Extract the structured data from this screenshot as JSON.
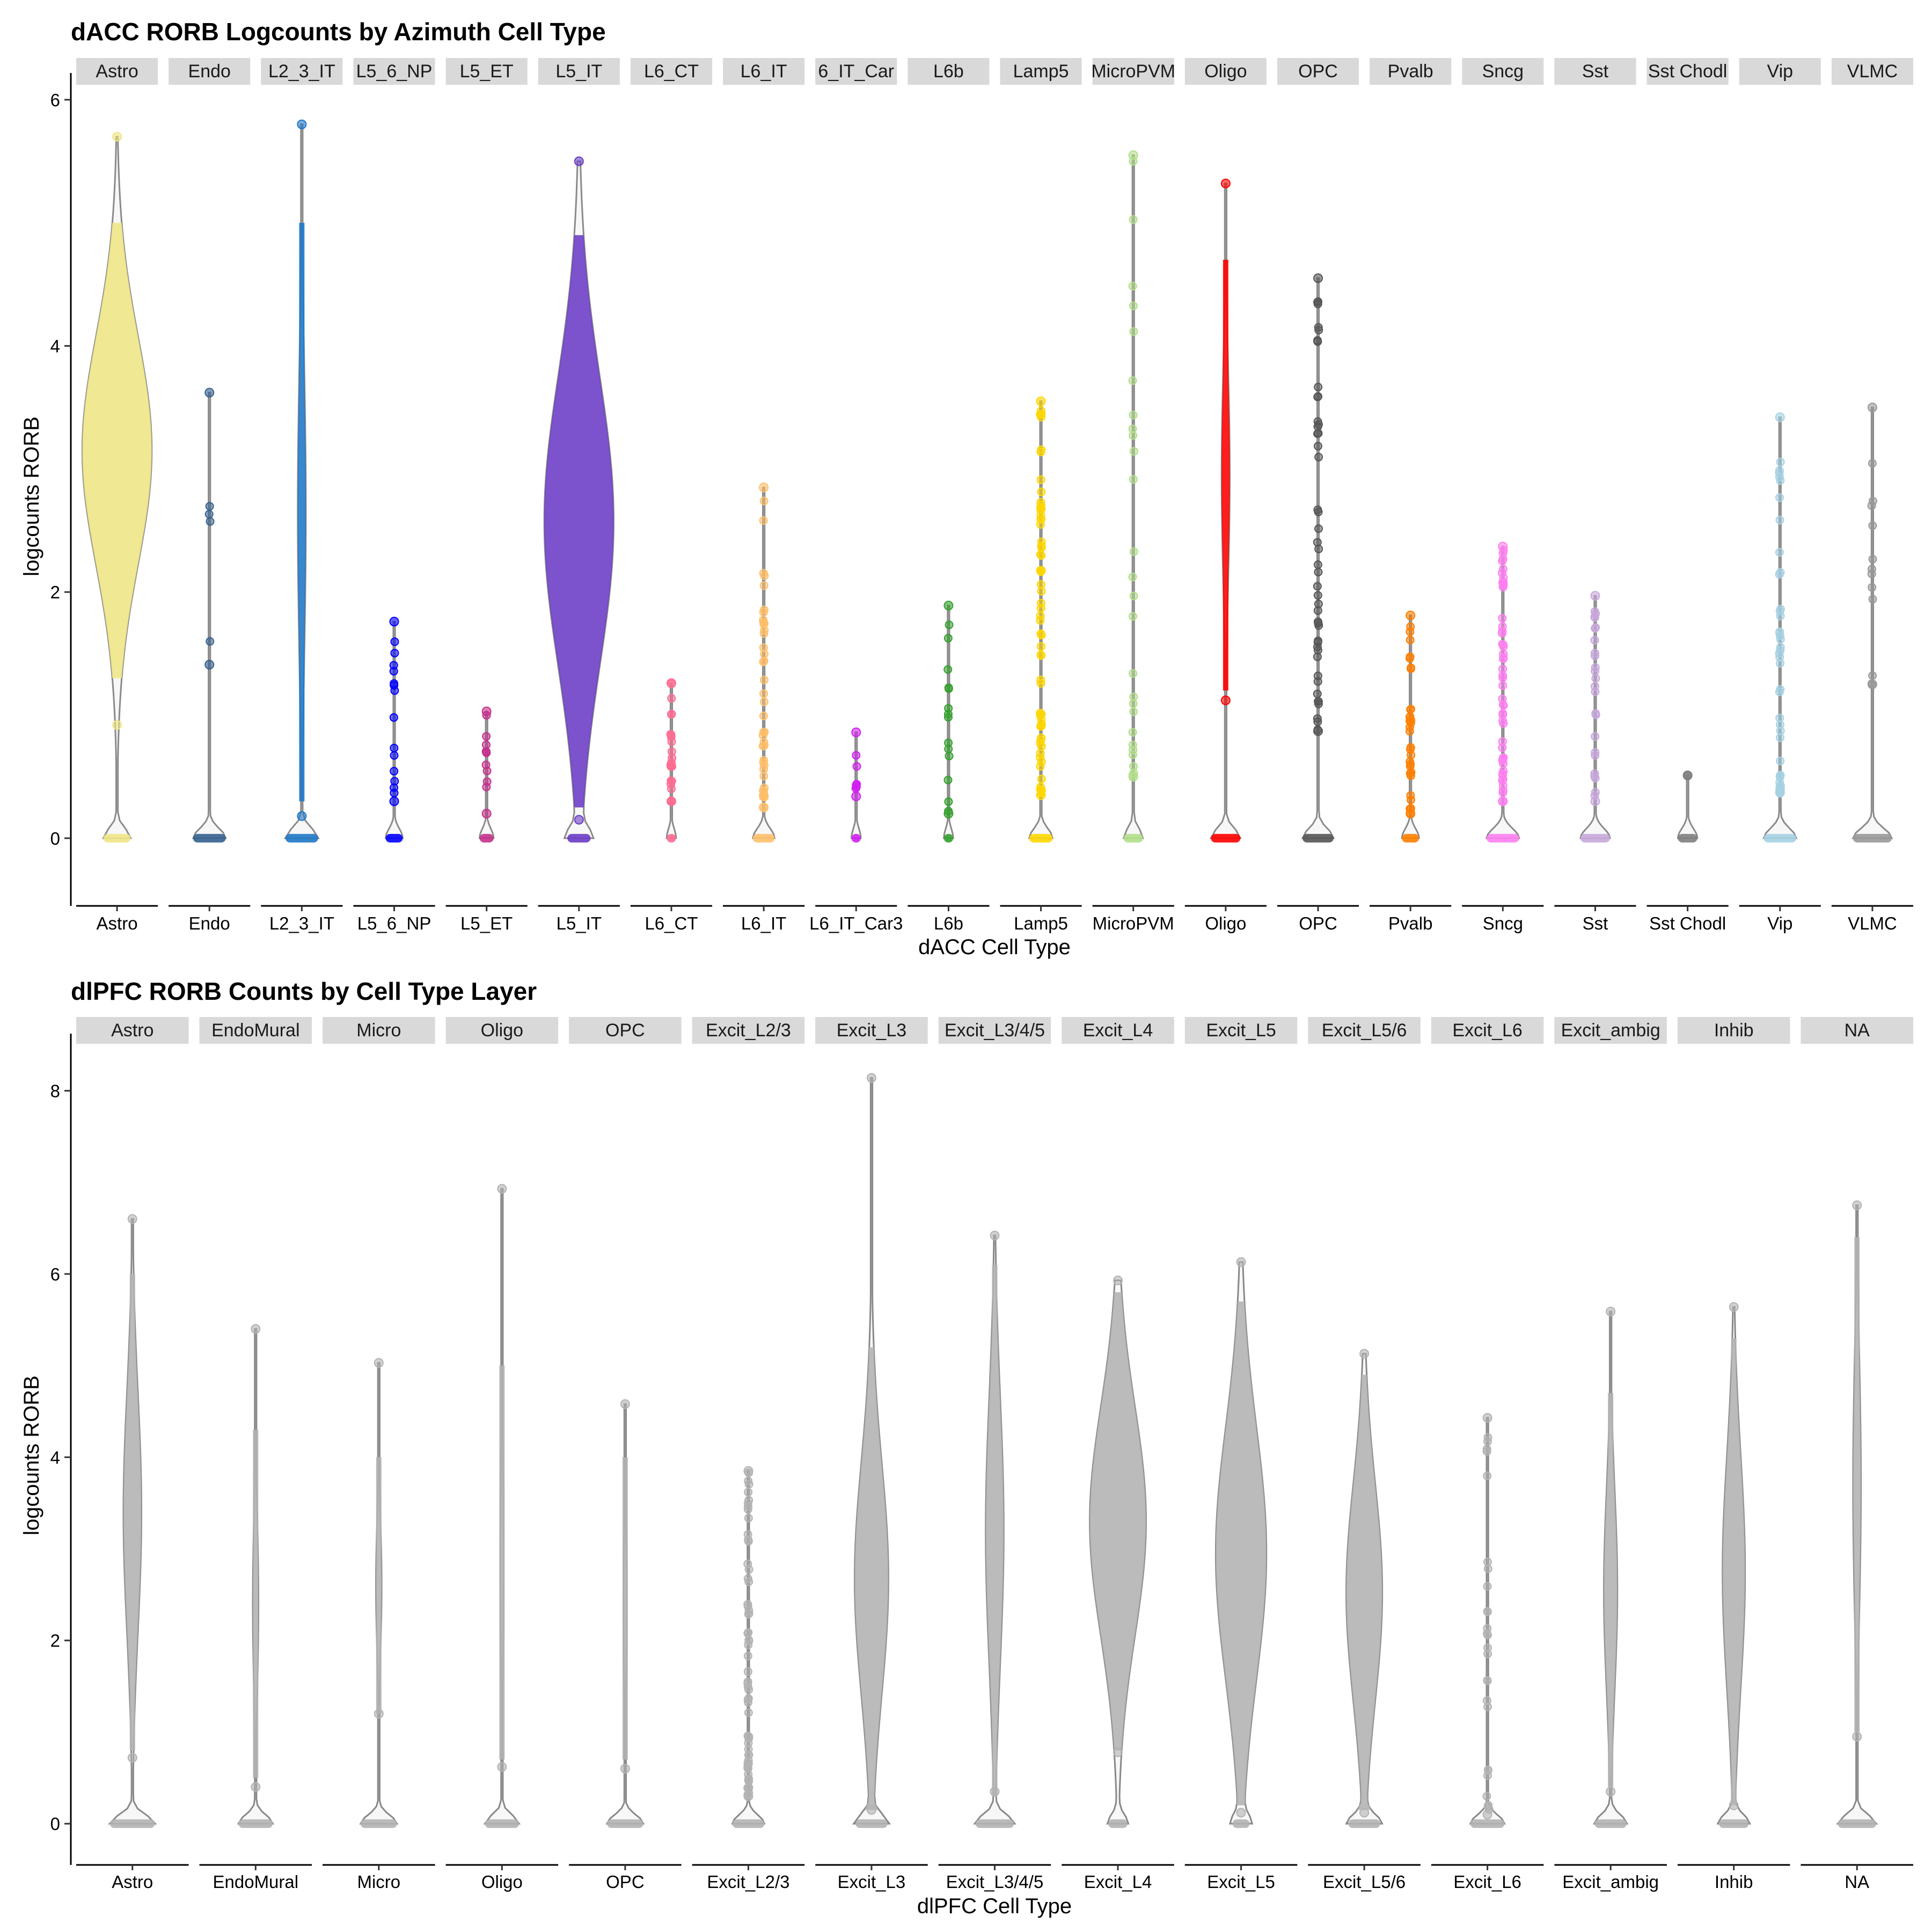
{
  "chart_data": [
    {
      "type": "violin",
      "title": "dACC RORB Logcounts by Azimuth Cell Type",
      "xlabel": "dACC Cell Type",
      "ylabel": "logcounts RORB",
      "ylim": [
        -0.55,
        6.2
      ],
      "yticks": [
        0,
        2,
        4,
        6
      ],
      "categories": [
        "Astro",
        "Endo",
        "L2_3_IT",
        "L5_6_NP",
        "L5_ET",
        "L5_IT",
        "L6_CT",
        "L6_IT",
        "L6_IT_Car3",
        "L6b",
        "Lamp5",
        "MicroPVM",
        "Oligo",
        "OPC",
        "Pvalb",
        "Sncg",
        "Sst",
        "Sst Chodl",
        "Vip",
        "VLMC"
      ],
      "strip_labels": [
        "Astro",
        "Endo",
        "L2_3_IT",
        "L5_6_NP",
        "L5_ET",
        "L5_IT",
        "L6_CT",
        "L6_IT",
        "6_IT_Car",
        "L6b",
        "Lamp5",
        "MicroPVM",
        "Oligo",
        "OPC",
        "Pvalb",
        "Sncg",
        "Sst",
        "Sst Chodl",
        "Vip",
        "VLMC"
      ],
      "colors": [
        "#F0E685",
        "#34618F",
        "#1F78C8",
        "#0000FF",
        "#C6308C",
        "#6B3CC6",
        "#FF6C91",
        "#FFC06A",
        "#D21EF1",
        "#33A02C",
        "#FFD700",
        "#B2DF8A",
        "#FF0000",
        "#555555",
        "#FF7F00",
        "#FF7FF2",
        "#C8A8DC",
        "#808080",
        "#A6D2E4",
        "#999999"
      ],
      "max": [
        5.7,
        3.62,
        5.8,
        1.76,
        1.03,
        5.5,
        1.26,
        2.85,
        0.86,
        1.89,
        3.55,
        5.55,
        5.32,
        4.55,
        1.81,
        2.37,
        1.97,
        0.51,
        3.42,
        3.5
      ],
      "nonzero_min": [
        0.92,
        1.41,
        0.18,
        0.3,
        0.2,
        0.15,
        0.3,
        0.25,
        0.34,
        0.2,
        0.35,
        0.5,
        1.12,
        0.87,
        0.2,
        0.3,
        0.3,
        0.51,
        0.37,
        1.25
      ],
      "dense_range": [
        [
          1.3,
          5.0
        ],
        null,
        [
          0.3,
          5.0
        ],
        null,
        null,
        [
          0.25,
          4.9
        ],
        null,
        null,
        null,
        null,
        null,
        null,
        [
          1.2,
          4.7
        ],
        null,
        null,
        null,
        null,
        null,
        null,
        null
      ],
      "dense_width": [
        0.85,
        0,
        0.1,
        0,
        0,
        0.85,
        0,
        0,
        0,
        0,
        0,
        0,
        0.1,
        0,
        0,
        0,
        0,
        0,
        0,
        0
      ],
      "zero_width": [
        0.35,
        0.42,
        0.42,
        0.22,
        0.18,
        0.3,
        0.12,
        0.28,
        0.12,
        0.12,
        0.3,
        0.25,
        0.38,
        0.4,
        0.22,
        0.42,
        0.38,
        0.25,
        0.42,
        0.5
      ],
      "points_count": [
        0,
        4,
        0,
        14,
        10,
        0,
        20,
        40,
        6,
        14,
        60,
        26,
        0,
        45,
        30,
        50,
        24,
        1,
        40,
        12
      ]
    },
    {
      "type": "violin",
      "title": "dlPFC RORB Counts by Cell Type Layer",
      "xlabel": "dlPFC Cell Type",
      "ylabel": "logcounts RORB",
      "ylim": [
        -0.45,
        8.6
      ],
      "yticks": [
        0,
        2,
        4,
        6,
        8
      ],
      "categories": [
        "Astro",
        "EndoMural",
        "Micro",
        "Oligo",
        "OPC",
        "Excit_L2/3",
        "Excit_L3",
        "Excit_L3/4/5",
        "Excit_L4",
        "Excit_L5",
        "Excit_L5/6",
        "Excit_L6",
        "Excit_ambig",
        "Inhib",
        "NA"
      ],
      "strip_labels": [
        "Astro",
        "EndoMural",
        "Micro",
        "Oligo",
        "OPC",
        "Excit_L2/3",
        "Excit_L3",
        "Excit_L3/4/5",
        "Excit_L4",
        "Excit_L5",
        "Excit_L5/6",
        "Excit_L6",
        "Excit_ambig",
        "Inhib",
        "NA"
      ],
      "colors": [
        "#B3B3B3"
      ],
      "max": [
        6.6,
        5.4,
        5.03,
        6.93,
        4.58,
        3.85,
        8.14,
        6.42,
        5.93,
        6.13,
        5.13,
        4.43,
        5.59,
        5.64,
        6.75
      ],
      "nonzero_min": [
        0.72,
        0.4,
        1.2,
        0.62,
        0.6,
        0.3,
        0.15,
        0.35,
        0.78,
        0.12,
        0.12,
        0.1,
        0.35,
        0.2,
        0.95
      ],
      "dense_range": [
        [
          0.8,
          6.0
        ],
        [
          0.5,
          4.3
        ],
        [
          1.2,
          4.0
        ],
        [
          0.7,
          5.0
        ],
        [
          0.7,
          4.0
        ],
        null,
        [
          0.15,
          5.2
        ],
        [
          0.3,
          6.1
        ],
        [
          0.8,
          5.8
        ],
        [
          0.2,
          5.7
        ],
        [
          0.15,
          4.9
        ],
        null,
        [
          0.4,
          4.7
        ],
        [
          0.2,
          5.3
        ],
        [
          1.0,
          6.4
        ]
      ],
      "dense_width": [
        0.16,
        0.05,
        0.05,
        0.03,
        0.03,
        0,
        0.3,
        0.16,
        0.5,
        0.45,
        0.32,
        0,
        0.12,
        0.2,
        0.07
      ],
      "zero_width": [
        0.42,
        0.32,
        0.34,
        0.32,
        0.34,
        0.3,
        0.3,
        0.36,
        0.18,
        0.16,
        0.3,
        0.32,
        0.3,
        0.28,
        0.36
      ],
      "points_count": [
        0,
        0,
        0,
        0,
        0,
        60,
        0,
        0,
        0,
        0,
        0,
        26,
        0,
        0,
        0
      ]
    }
  ]
}
